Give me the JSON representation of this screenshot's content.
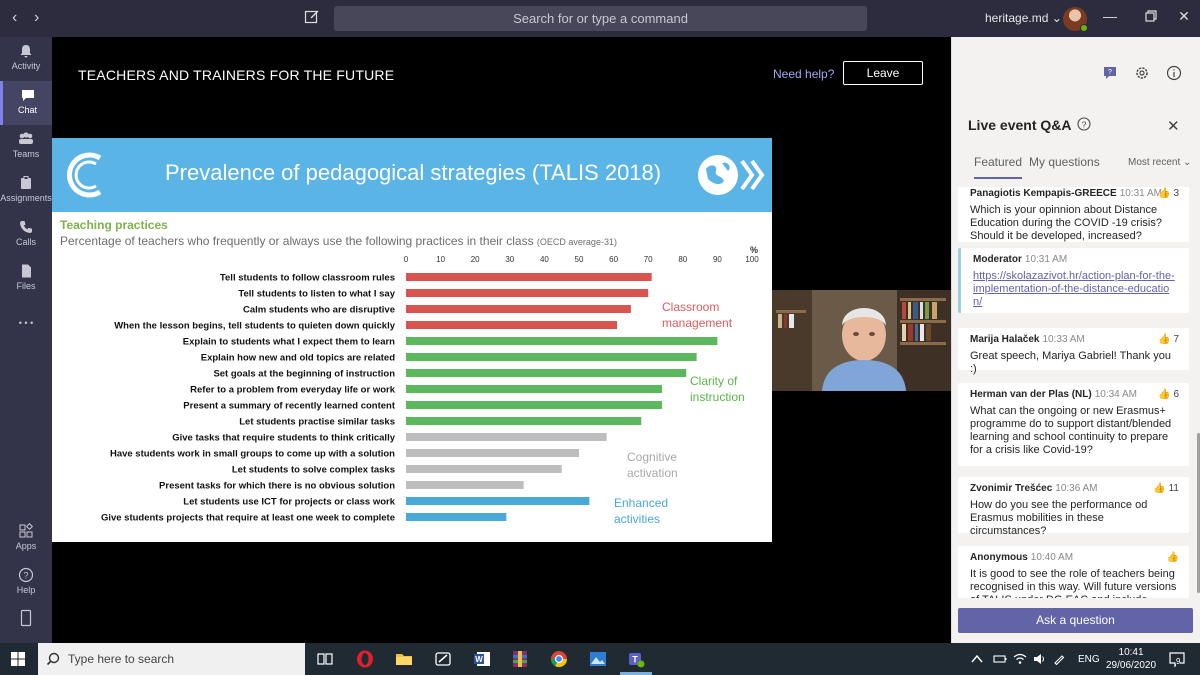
{
  "titlebar": {
    "search_placeholder": "Search for or type a command",
    "tenant": "heritage.md",
    "tenant_chevron": "⌄"
  },
  "rail": {
    "items": [
      {
        "label": "Activity",
        "icon": "bell-icon"
      },
      {
        "label": "Chat",
        "icon": "chat-icon"
      },
      {
        "label": "Teams",
        "icon": "teams-icon"
      },
      {
        "label": "Assignments",
        "icon": "assignments-icon"
      },
      {
        "label": "Calls",
        "icon": "phone-icon"
      },
      {
        "label": "Files",
        "icon": "file-icon"
      }
    ],
    "more": "• • •",
    "apps": "Apps",
    "help": "Help"
  },
  "stage": {
    "event_title": "TEACHERS AND TRAINERS FOR THE FUTURE",
    "need_help": "Need help?",
    "leave": "Leave"
  },
  "slide": {
    "title": "Prevalence of pedagogical strategies (TALIS 2018)",
    "section": "Teaching practices",
    "subtitle": "Percentage of teachers who frequently or always use the following practices in their class",
    "subtitle_note": "(OECD average-31)"
  },
  "chart_data": {
    "type": "bar",
    "orientation": "horizontal",
    "unit_label": "%",
    "xlim": [
      0,
      100
    ],
    "ticks": [
      "0",
      "10",
      "20",
      "30",
      "40",
      "50",
      "60",
      "70",
      "80",
      "90",
      "100"
    ],
    "categories": [
      "Tell students to follow classroom rules",
      "Tell students to listen to what I say",
      "Calm students who are disruptive",
      "When the lesson begins, tell students to quieten down quickly",
      "Explain to students what I expect them to learn",
      "Explain how new and old topics are related",
      "Set goals at the beginning of instruction",
      "Refer to a problem from everyday life or work",
      "Present a summary of recently learned content",
      "Let students practise similar tasks",
      "Give tasks that require students to think critically",
      "Have students work in small groups to come up with a solution",
      "Let students to solve complex tasks",
      "Present tasks for which there is no obvious solution",
      "Let students use ICT  for projects or class work",
      "Give students projects that require at least one week to complete"
    ],
    "values": [
      71,
      70,
      65,
      61,
      90,
      84,
      81,
      74,
      74,
      68,
      58,
      50,
      45,
      34,
      53,
      29
    ],
    "groups": [
      0,
      0,
      0,
      0,
      1,
      1,
      1,
      1,
      1,
      1,
      2,
      2,
      2,
      2,
      3,
      3
    ],
    "group_labels": [
      {
        "lines": [
          "Classroom",
          "management"
        ],
        "color": "#e05a5a"
      },
      {
        "lines": [
          "Clarity of",
          "instruction"
        ],
        "color": "#5ab44a"
      },
      {
        "lines": [
          "Cognitive",
          "activation"
        ],
        "color": "#a8a8a8"
      },
      {
        "lines": [
          "Enhanced",
          "activities"
        ],
        "color": "#4aa8d8"
      }
    ],
    "colors": [
      "#d9534f",
      "#5cb85c",
      "#bdbdbd",
      "#4aa8d8"
    ]
  },
  "panel": {
    "title": "Live event Q&A",
    "tabs": [
      "Featured",
      "My questions"
    ],
    "sort": "Most recent ⌄",
    "ask": "Ask a question",
    "questions": [
      {
        "author": "Panagiotis Kempapis-GREECE",
        "time": "10:31 AM",
        "likes": "3",
        "text": "Which is your opinnion about Distance Education during the COVID -19 crisis? Should it be developed, increased?"
      },
      {
        "author": "Moderator",
        "time": "10:31 AM",
        "likes": "",
        "text": "https://skolazazivot.hr/action-plan-for-the-implementation-of-the-distance-education/"
      },
      {
        "author": "Marija Halaček",
        "time": "10:33 AM",
        "likes": "7",
        "text": "Great speech, Mariya Gabriel! Thank you :)"
      },
      {
        "author": "Herman van der Plas (NL)",
        "time": "10:34 AM",
        "likes": "6",
        "text": "What can the ongoing or new Erasmus+ programme do to support distant/blended learning and school continuity to prepare for a crisis like Covid-19?"
      },
      {
        "author": "Zvonimir Trešćec",
        "time": "10:36 AM",
        "likes": "11",
        "text": "How do you see the performance od Erasmus mobilities in these circumstances?"
      },
      {
        "author": "Anonymous",
        "time": "10:40 AM",
        "likes": "",
        "text": "It is good to see the role of teachers being recognised in this way. Will future versions of TALIS under DG EAC and include"
      }
    ]
  },
  "taskbar": {
    "search": "Type here to search",
    "lang": "ENG",
    "time": "10:41",
    "date": "29/06/2020",
    "notifications": "9"
  }
}
